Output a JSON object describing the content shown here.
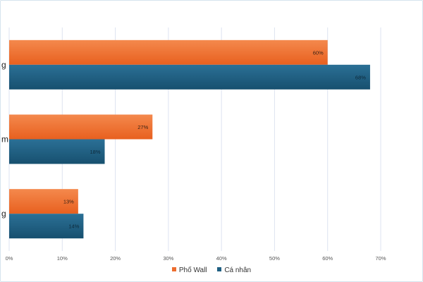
{
  "chart_data": {
    "type": "bar",
    "orientation": "horizontal",
    "categories": [
      "g",
      "m",
      "g"
    ],
    "series": [
      {
        "name": "Phố Wall",
        "values": [
          60,
          27,
          13
        ],
        "labels": [
          "60%",
          "27%",
          "13%"
        ],
        "color": "#ed6d2f"
      },
      {
        "name": "Cá nhân",
        "values": [
          68,
          18,
          14
        ],
        "labels": [
          "68%",
          "18%",
          "14%"
        ],
        "color": "#1f5f82"
      }
    ],
    "xlim": [
      0,
      70
    ],
    "xticks": [
      0,
      10,
      20,
      30,
      40,
      50,
      60,
      70
    ],
    "xtick_labels": [
      "0%",
      "10%",
      "20%",
      "30%",
      "40%",
      "50%",
      "60%",
      "70%"
    ],
    "grid": true,
    "legend": "bottom-center"
  },
  "legend": {
    "items": [
      {
        "label": "Phố Wall",
        "color": "#ed6d2f"
      },
      {
        "label": "Cá nhân",
        "color": "#1f5f82"
      }
    ]
  }
}
